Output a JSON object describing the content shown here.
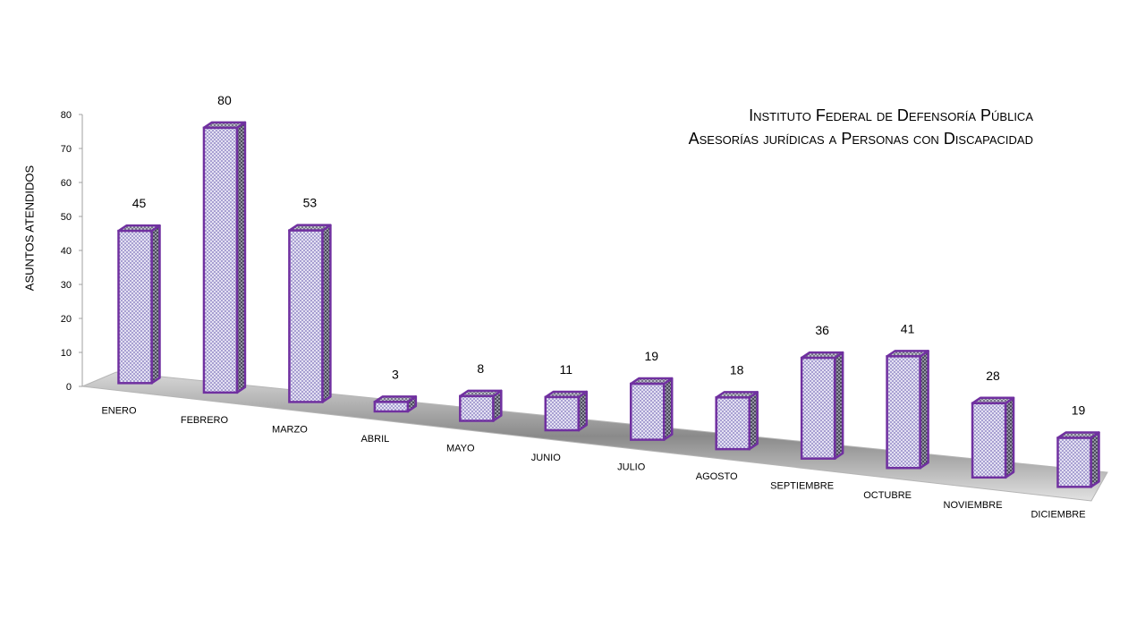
{
  "chart_data": {
    "type": "bar",
    "title": "Instituto Federal de Defensoría Pública",
    "subtitle": "Asesorías jurídicas a Personas con Discapacidad",
    "xlabel": "",
    "ylabel": "ASUNTOS ATENDIDOS",
    "ylim": [
      0,
      80
    ],
    "yticks": [
      0,
      10,
      20,
      30,
      40,
      50,
      60,
      70,
      80
    ],
    "categories": [
      "ENERO",
      "FEBRERO",
      "MARZO",
      "ABRIL",
      "MAYO",
      "JUNIO",
      "JULIO",
      "AGOSTO",
      "SEPTIEMBRE",
      "OCTUBRE",
      "NOVIEMBRE",
      "DICIEMBRE"
    ],
    "values": [
      45,
      80,
      53,
      3,
      8,
      11,
      19,
      18,
      36,
      41,
      28,
      19
    ],
    "style": "3d-perspective",
    "colors": {
      "bar_stroke": "#7030a0",
      "bar_fill": "#d9d2f0",
      "side_fill": "#6d6d80",
      "floor": "#9c9c9c"
    }
  }
}
